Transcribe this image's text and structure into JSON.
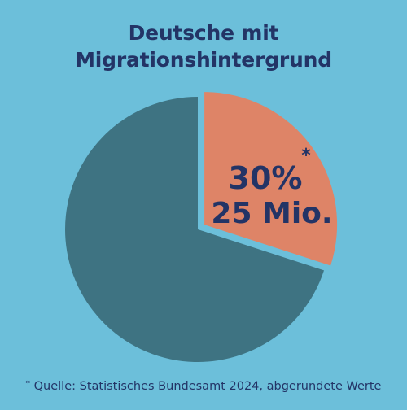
{
  "colors": {
    "background": "#6cbfda",
    "title": "#233466",
    "majority_slice": "#3e7382",
    "highlight_slice": "#de8467",
    "highlight_text": "#233466",
    "footnote": "#233466"
  },
  "chart_data": {
    "type": "pie",
    "title_lines": [
      "Deutsche mit",
      "Migrationshintergrund"
    ],
    "slices": [
      {
        "label": "",
        "value": 70,
        "color": "#3e7382",
        "exploded": false
      },
      {
        "label": "30% 25 Mio.",
        "value": 30,
        "color": "#de8467",
        "exploded": true
      }
    ],
    "highlight_label": {
      "percent": "30%",
      "asterisk": "*",
      "count": "25 Mio."
    },
    "footnote": {
      "marker": "*",
      "text": " Quelle: Statistisches Bundesamt 2024, abgerundete Werte"
    }
  }
}
